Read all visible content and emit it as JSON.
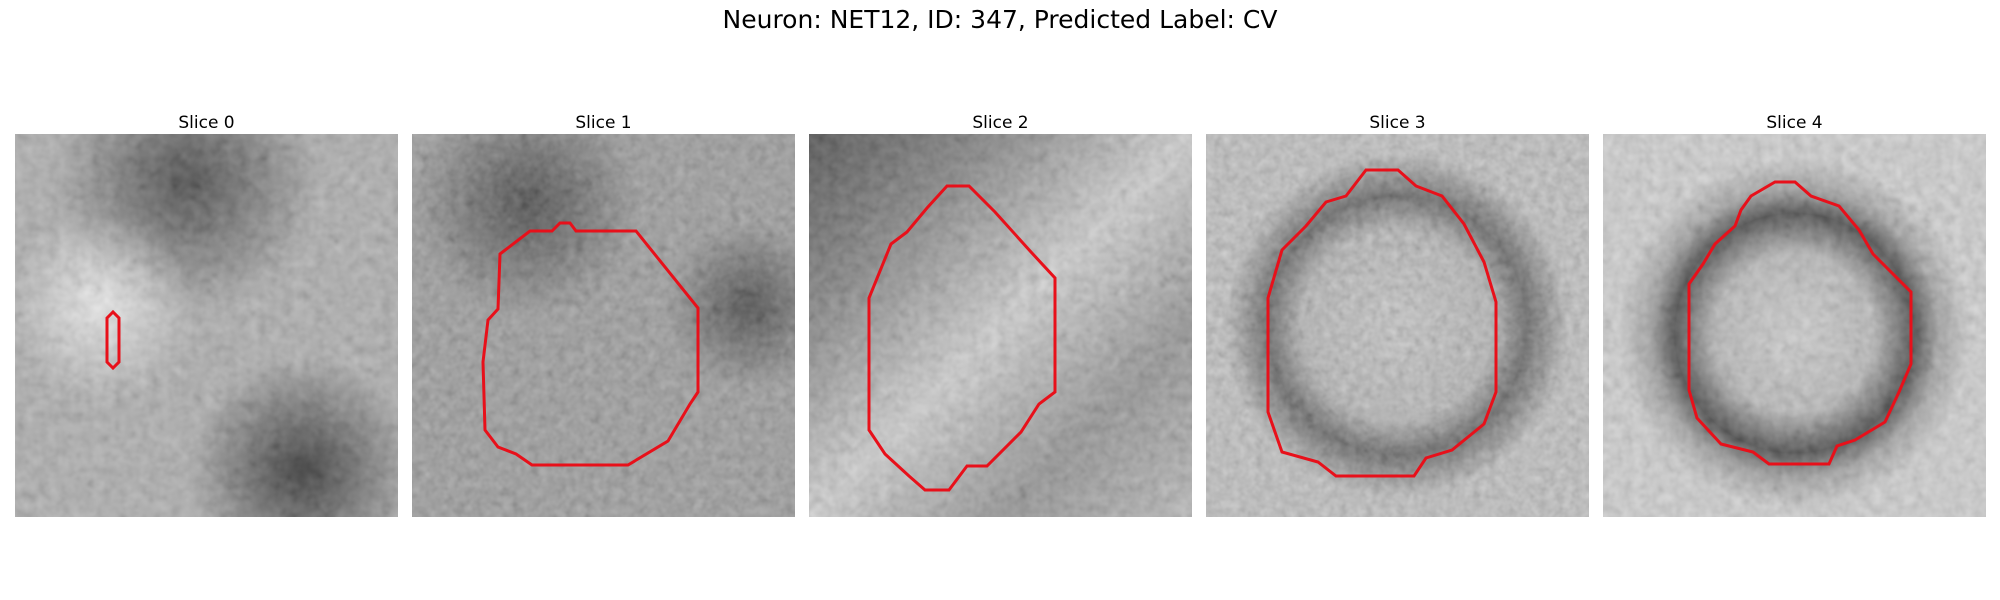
{
  "figure": {
    "title": "Neuron: NET12, ID: 347, Predicted Label: CV"
  },
  "panels": [
    {
      "title": "Slice 0"
    },
    {
      "title": "Slice 1"
    },
    {
      "title": "Slice 2"
    },
    {
      "title": "Slice 3"
    },
    {
      "title": "Slice 4"
    }
  ],
  "colors": {
    "contour": "#e8101a",
    "background": "#ffffff"
  }
}
